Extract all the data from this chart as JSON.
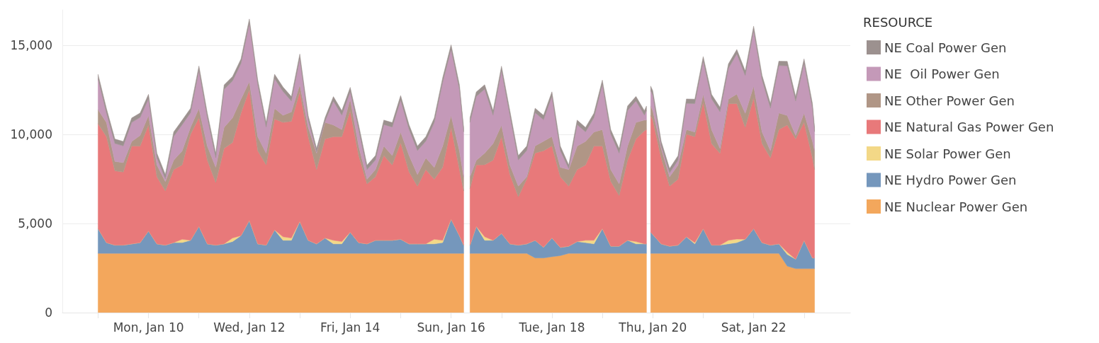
{
  "chart_data": {
    "type": "area",
    "stacked": true,
    "legend_title": "RESOURCE",
    "legend": "right",
    "grid": "y",
    "xlim": [
      "--01-08T07:00",
      "--01-23T22:00"
    ],
    "xticks": [
      {
        "value": "--01-09",
        "label": null
      },
      {
        "value": "--01-10",
        "label": "Mon, Jan 10"
      },
      {
        "value": "--01-11",
        "label": null
      },
      {
        "value": "--01-12",
        "label": "Wed, Jan 12"
      },
      {
        "value": "--01-13",
        "label": null
      },
      {
        "value": "--01-14",
        "label": "Fri, Jan 14"
      },
      {
        "value": "--01-15",
        "label": null
      },
      {
        "value": "--01-16",
        "label": "Sun, Jan 16"
      },
      {
        "value": "--01-17",
        "label": null
      },
      {
        "value": "--01-18",
        "label": "Tue, Jan 18"
      },
      {
        "value": "--01-19",
        "label": null
      },
      {
        "value": "--01-20",
        "label": "Thu, Jan 20"
      },
      {
        "value": "--01-21",
        "label": null
      },
      {
        "value": "--01-22",
        "label": "Sat, Jan 22"
      },
      {
        "value": "--01-23",
        "label": null
      }
    ],
    "ylim": [
      0,
      17000
    ],
    "yticks": [
      0,
      {
        "value": 5000,
        "label": "5,000"
      },
      {
        "value": 10000,
        "label": "10,000"
      },
      {
        "value": 15000,
        "label": "15,000"
      }
    ],
    "x": [
      "--01-09T00:00",
      "--01-09T04:00",
      "--01-09T08:00",
      "--01-09T12:00",
      "--01-09T16:00",
      "--01-09T20:00",
      "--01-10T00:00",
      "--01-10T04:00",
      "--01-10T08:00",
      "--01-10T12:00",
      "--01-10T16:00",
      "--01-10T20:00",
      "--01-11T00:00",
      "--01-11T04:00",
      "--01-11T08:00",
      "--01-11T12:00",
      "--01-11T16:00",
      "--01-11T20:00",
      "--01-12T00:00",
      "--01-12T04:00",
      "--01-12T08:00",
      "--01-12T12:00",
      "--01-12T16:00",
      "--01-12T20:00",
      "--01-13T00:00",
      "--01-13T04:00",
      "--01-13T08:00",
      "--01-13T12:00",
      "--01-13T16:00",
      "--01-13T20:00",
      "--01-14T00:00",
      "--01-14T04:00",
      "--01-14T08:00",
      "--01-14T12:00",
      "--01-14T16:00",
      "--01-14T20:00",
      "--01-15T00:00",
      "--01-15T04:00",
      "--01-15T08:00",
      "--01-15T12:00",
      "--01-15T16:00",
      "--01-15T20:00",
      "--01-16T00:00",
      "--01-16T04:00",
      "--01-16T06:00",
      "--01-16T07:00",
      "--01-16T09:00",
      "--01-16T12:00",
      "--01-16T16:00",
      "--01-16T20:00",
      "--01-17T00:00",
      "--01-17T04:00",
      "--01-17T08:00",
      "--01-17T12:00",
      "--01-17T16:00",
      "--01-17T20:00",
      "--01-18T00:00",
      "--01-18T04:00",
      "--01-18T08:00",
      "--01-18T12:00",
      "--01-18T16:00",
      "--01-18T20:00",
      "--01-19T00:00",
      "--01-19T04:00",
      "--01-19T08:00",
      "--01-19T12:00",
      "--01-19T16:00",
      "--01-19T20:00",
      "--01-19T21:00",
      "--01-19T22:00",
      "--01-19T23:00",
      "--01-20T00:00",
      "--01-20T04:00",
      "--01-20T08:00",
      "--01-20T12:00",
      "--01-20T16:00",
      "--01-20T20:00",
      "--01-21T00:00",
      "--01-21T04:00",
      "--01-21T08:00",
      "--01-21T12:00",
      "--01-21T16:00",
      "--01-21T20:00",
      "--01-22T00:00",
      "--01-22T04:00",
      "--01-22T08:00",
      "--01-22T12:00",
      "--01-22T16:00",
      "--01-22T20:00",
      "--01-23T00:00",
      "--01-23T04:00",
      "--01-23T05:00"
    ],
    "series": [
      {
        "name": "NE Nuclear Power Gen",
        "color": "#f3a75c",
        "values": [
          3330,
          3330,
          3330,
          3330,
          3330,
          3330,
          3330,
          3330,
          3330,
          3330,
          3330,
          3330,
          3330,
          3330,
          3330,
          3330,
          3330,
          3330,
          3330,
          3330,
          3330,
          3330,
          3330,
          3330,
          3330,
          3330,
          3330,
          3330,
          3330,
          3330,
          3330,
          3330,
          3330,
          3330,
          3330,
          3330,
          3330,
          3330,
          3330,
          3330,
          3330,
          3330,
          3330,
          3330,
          3330,
          null,
          3330,
          3330,
          3330,
          3330,
          3330,
          3330,
          3330,
          3330,
          3070,
          3070,
          3140,
          3200,
          3330,
          3330,
          3330,
          3330,
          3330,
          3330,
          3330,
          3330,
          3330,
          3330,
          3330,
          null,
          3330,
          3330,
          3330,
          3330,
          3330,
          3330,
          3330,
          3330,
          3330,
          3330,
          3330,
          3330,
          3330,
          3330,
          3330,
          3330,
          3330,
          2610,
          2470,
          2470,
          2470,
          2470
        ]
      },
      {
        "name": "NE Hydro Power Gen",
        "color": "#7597bc",
        "values": [
          1390,
          600,
          460,
          460,
          530,
          600,
          1260,
          530,
          460,
          600,
          600,
          730,
          1520,
          530,
          460,
          530,
          660,
          990,
          1850,
          530,
          460,
          1320,
          730,
          730,
          1790,
          730,
          530,
          860,
          530,
          530,
          1190,
          600,
          530,
          730,
          730,
          730,
          790,
          530,
          530,
          530,
          530,
          600,
          1920,
          990,
          460,
          null,
          460,
          1520,
          730,
          730,
          1120,
          530,
          460,
          530,
          990,
          600,
          1060,
          460,
          400,
          660,
          600,
          530,
          1390,
          400,
          400,
          730,
          530,
          530,
          530,
          null,
          1190,
          1060,
          530,
          400,
          460,
          930,
          530,
          1390,
          460,
          460,
          530,
          600,
          790,
          1390,
          600,
          460,
          530,
          660,
          530,
          1590,
          600,
          600
        ]
      },
      {
        "name": "NE Solar Power Gen",
        "color": "#f3d887",
        "values": [
          0,
          0,
          0,
          0,
          0,
          0,
          0,
          0,
          0,
          0,
          190,
          0,
          0,
          0,
          0,
          0,
          200,
          0,
          0,
          0,
          0,
          0,
          200,
          130,
          0,
          0,
          0,
          0,
          200,
          130,
          0,
          0,
          0,
          0,
          0,
          0,
          0,
          0,
          0,
          0,
          260,
          130,
          0,
          0,
          0,
          null,
          0,
          0,
          200,
          0,
          0,
          0,
          0,
          0,
          0,
          0,
          0,
          0,
          0,
          0,
          130,
          200,
          0,
          0,
          0,
          0,
          130,
          0,
          0,
          null,
          0,
          0,
          0,
          0,
          0,
          0,
          70,
          0,
          0,
          0,
          200,
          200,
          0,
          0,
          0,
          0,
          0,
          130,
          0,
          0,
          0,
          0
        ]
      },
      {
        "name": "NE Natural Gas Power Gen",
        "color": "#e8797a",
        "values": [
          5890,
          5950,
          4170,
          4100,
          5490,
          5420,
          5950,
          3770,
          3040,
          4100,
          4170,
          5950,
          6090,
          4700,
          3510,
          5360,
          5360,
          6880,
          7340,
          5230,
          4500,
          6220,
          6420,
          6550,
          7280,
          5820,
          4170,
          5560,
          5820,
          5890,
          6810,
          4900,
          3370,
          3570,
          4760,
          4230,
          5420,
          4040,
          3240,
          4170,
          3370,
          4100,
          5160,
          3700,
          3040,
          null,
          3180,
          3440,
          4040,
          4500,
          5420,
          3900,
          2710,
          3640,
          4900,
          5420,
          5160,
          3970,
          3370,
          4040,
          4230,
          5290,
          4630,
          3640,
          2840,
          4500,
          5760,
          6350,
          6420,
          null,
          6550,
          6420,
          4830,
          3370,
          3700,
          5760,
          5950,
          7080,
          5690,
          5160,
          7670,
          7610,
          6280,
          7340,
          5560,
          4900,
          6420,
          7140,
          6750,
          6620,
          5620,
          4960
        ]
      },
      {
        "name": "NE Other Power Gen",
        "color": "#b09686",
        "values": [
          790,
          790,
          530,
          530,
          260,
          600,
          530,
          660,
          530,
          530,
          790,
          400,
          530,
          790,
          860,
          1190,
          1390,
          790,
          460,
          790,
          660,
          600,
          400,
          530,
          400,
          530,
          930,
          930,
          660,
          400,
          660,
          530,
          260,
          400,
          530,
          530,
          600,
          930,
          660,
          660,
          660,
          1190,
          660,
          1060,
          790,
          null,
          660,
          260,
          660,
          930,
          660,
          530,
          600,
          130,
          400,
          530,
          530,
          530,
          930,
          1320,
          1320,
          790,
          930,
          660,
          660,
          790,
          930,
          600,
          530,
          null,
          530,
          530,
          530,
          530,
          790,
          260,
          260,
          460,
          790,
          260,
          260,
          530,
          790,
          660,
          660,
          400,
          930,
          530,
          200,
          530,
          930,
          1060
        ]
      },
      {
        "name": "NE  Oil Power Gen",
        "color": "#c499b8",
        "values": [
          1730,
          540,
          1010,
          940,
          1070,
          1010,
          940,
          410,
          150,
          1340,
          1470,
          810,
          2130,
          1600,
          540,
          2130,
          2070,
          2000,
          3260,
          2930,
          1470,
          1670,
          1340,
          610,
          1470,
          410,
          60,
          60,
          1340,
          810,
          410,
          940,
          540,
          540,
          1210,
          1600,
          1800,
          1470,
          1340,
          940,
          2530,
          3590,
          3720,
          3450,
          2530,
          null,
          3060,
          3590,
          3590,
          1600,
          3060,
          2790,
          1470,
          1470,
          1870,
          1210,
          2260,
          940,
          60,
          1210,
          540,
          810,
          2530,
          2000,
          1730,
          2000,
          1210,
          280,
          540,
          null,
          870,
          870,
          150,
          210,
          280,
          1470,
          1600,
          1870,
          1730,
          2070,
          1730,
          2260,
          2130,
          3120,
          2930,
          2400,
          2660,
          2790,
          1930,
          2790,
          1870,
          1070
        ]
      },
      {
        "name": "NE Coal Power Gen",
        "color": "#9c918f",
        "values": [
          250,
          250,
          250,
          250,
          250,
          250,
          250,
          250,
          250,
          250,
          250,
          250,
          250,
          250,
          250,
          250,
          250,
          250,
          250,
          250,
          250,
          250,
          250,
          250,
          250,
          250,
          200,
          200,
          250,
          250,
          250,
          250,
          250,
          250,
          250,
          250,
          250,
          250,
          250,
          250,
          250,
          250,
          250,
          250,
          250,
          null,
          250,
          250,
          250,
          250,
          250,
          250,
          250,
          250,
          250,
          250,
          250,
          250,
          200,
          250,
          250,
          250,
          250,
          250,
          250,
          250,
          250,
          250,
          250,
          null,
          250,
          250,
          250,
          250,
          250,
          250,
          250,
          250,
          250,
          250,
          250,
          250,
          250,
          250,
          250,
          250,
          250,
          250,
          250,
          250,
          250,
          250
        ]
      }
    ]
  }
}
